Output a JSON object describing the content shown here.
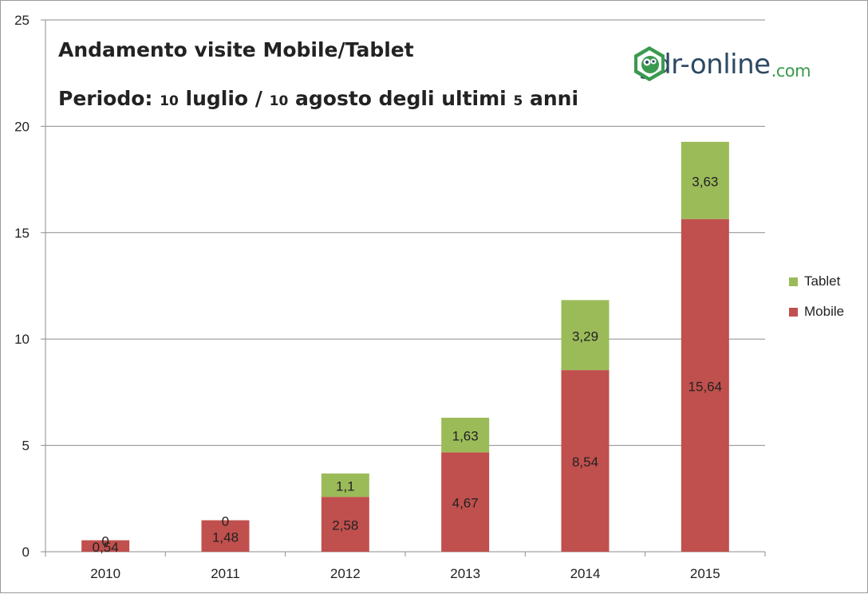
{
  "chart_data": {
    "type": "bar",
    "stacked": true,
    "title_line1": "Andamento visite Mobile/Tablet",
    "title_line2": "Periodo: 10 luglio / 10 agosto degli ultimi 5 anni",
    "categories": [
      "2010",
      "2011",
      "2012",
      "2013",
      "2014",
      "2015"
    ],
    "series": [
      {
        "name": "Mobile",
        "color": "#c0504d",
        "values": [
          0.54,
          1.48,
          2.58,
          4.67,
          8.54,
          15.64
        ],
        "labels": [
          "0,54",
          "1,48",
          "2,58",
          "4,67",
          "8,54",
          "15,64"
        ]
      },
      {
        "name": "Tablet",
        "color": "#9bbb59",
        "values": [
          0,
          0,
          1.1,
          1.63,
          3.29,
          3.63
        ],
        "labels": [
          "0",
          "0",
          "1,1",
          "1,63",
          "3,29",
          "3,63"
        ]
      }
    ],
    "ylim": [
      0,
      25
    ],
    "yticks": [
      0,
      5,
      10,
      15,
      20,
      25
    ],
    "grid": true,
    "legend_position": "right"
  },
  "logo": {
    "name": "gdr-online",
    "text": "gdr-online",
    "suffix": ".com",
    "icon": "gdr-face-icon",
    "color_green": "#3a9a4e",
    "color_text": "#2e4a63"
  },
  "colors": {
    "axis": "#8c8c8c",
    "grid": "#8c8c8c",
    "text": "#222222"
  }
}
